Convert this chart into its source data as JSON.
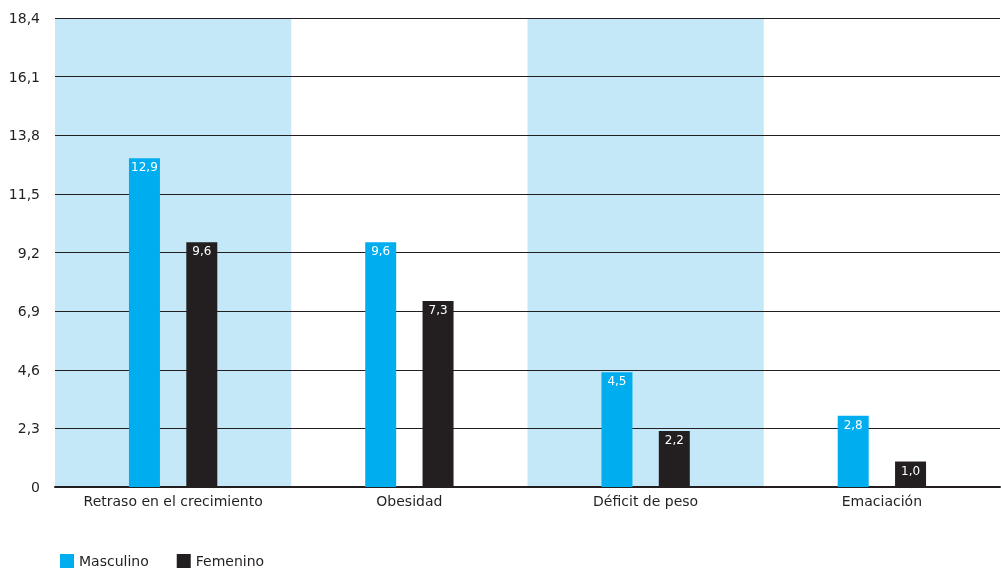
{
  "chart_data": {
    "type": "bar",
    "categories": [
      "Retraso en el crecimiento",
      "Obesidad",
      "Déficit de peso",
      "Emaciación"
    ],
    "series": [
      {
        "name": "Masculino",
        "color": "#00aeef",
        "values": [
          12.9,
          9.6,
          4.5,
          2.8
        ],
        "value_labels": [
          "12,9",
          "9,6",
          "4,5",
          "2,8"
        ]
      },
      {
        "name": "Femenino",
        "color": "#231f20",
        "values": [
          9.6,
          7.3,
          2.2,
          1.0
        ],
        "value_labels": [
          "9,6",
          "7,3",
          "2,2",
          "1,0"
        ]
      }
    ],
    "ylim": [
      0,
      18.4
    ],
    "yticks": [
      0,
      {
        "value": 2.3,
        "label": "2,3"
      },
      {
        "value": 4.6,
        "label": "4,6"
      },
      {
        "value": 6.9,
        "label": "6,9"
      },
      {
        "value": 9.2,
        "label": "9,2"
      },
      {
        "value": 11.5,
        "label": "11,5"
      },
      {
        "value": 13.8,
        "label": "13,8"
      },
      {
        "value": 16.1,
        "label": "16,1"
      },
      {
        "value": 18.4,
        "label": "18,4"
      }
    ],
    "bands": [
      {
        "axis": "x",
        "from": "Retraso en el crecimiento",
        "to": "Retraso en el crecimiento",
        "color": "#c5e8f8"
      },
      {
        "axis": "x",
        "from": "Déficit de peso",
        "to": "Déficit de peso",
        "color": "#c5e8f8"
      }
    ],
    "grid": "y",
    "legend": "bottom left"
  }
}
